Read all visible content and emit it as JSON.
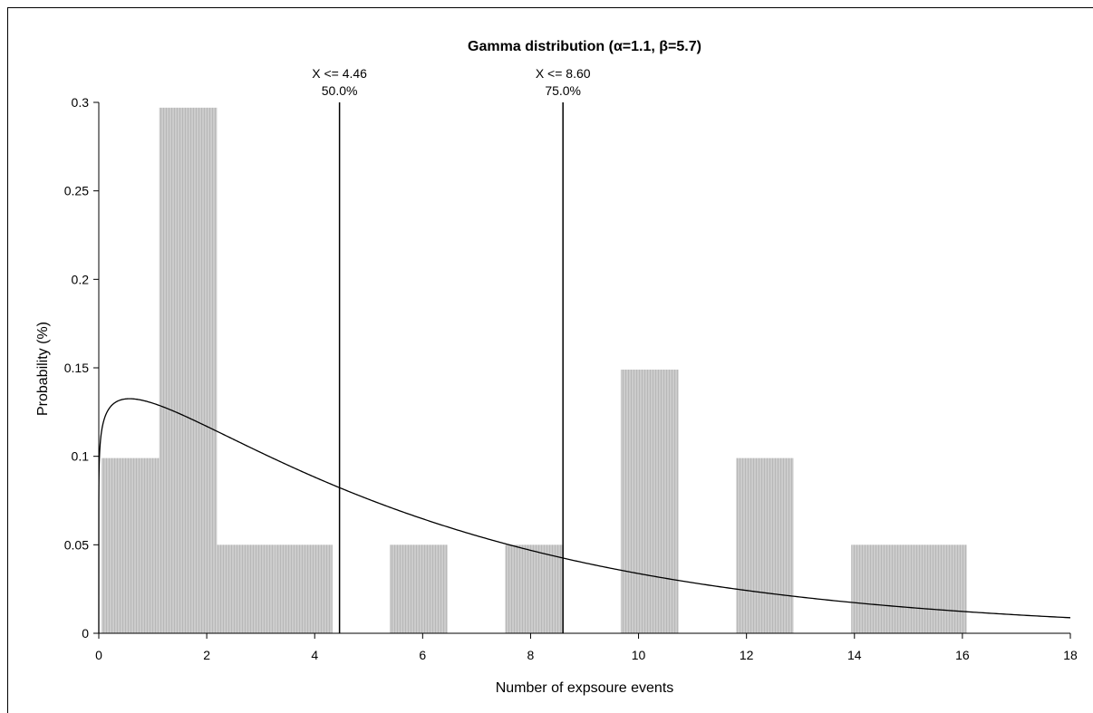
{
  "chart_data": {
    "type": "bar",
    "title": "Gamma distribution (α=1.1, β=5.7)",
    "xlabel": "Number of expsoure events",
    "ylabel": "Probability (%)",
    "xlim": [
      0,
      18
    ],
    "ylim": [
      0,
      0.3
    ],
    "x_ticks": [
      "0",
      "2",
      "4",
      "6",
      "8",
      "10",
      "12",
      "14",
      "16",
      "18"
    ],
    "y_ticks": [
      "0",
      "0.05",
      "0.1",
      "0.15",
      "0.2",
      "0.25",
      "0.3"
    ],
    "bars": [
      {
        "x0": 0.05,
        "x1": 1.12,
        "value": 0.099
      },
      {
        "x0": 1.12,
        "x1": 2.19,
        "value": 0.297
      },
      {
        "x0": 2.19,
        "x1": 3.26,
        "value": 0.05
      },
      {
        "x0": 3.26,
        "x1": 4.33,
        "value": 0.05
      },
      {
        "x0": 4.33,
        "x1": 5.39,
        "value": 0.0
      },
      {
        "x0": 5.39,
        "x1": 6.46,
        "value": 0.05
      },
      {
        "x0": 6.46,
        "x1": 7.53,
        "value": 0.0
      },
      {
        "x0": 7.53,
        "x1": 8.6,
        "value": 0.05
      },
      {
        "x0": 8.6,
        "x1": 9.67,
        "value": 0.0
      },
      {
        "x0": 9.67,
        "x1": 10.74,
        "value": 0.149
      },
      {
        "x0": 10.74,
        "x1": 11.81,
        "value": 0.0
      },
      {
        "x0": 11.81,
        "x1": 12.87,
        "value": 0.099
      },
      {
        "x0": 12.87,
        "x1": 13.94,
        "value": 0.0
      },
      {
        "x0": 13.94,
        "x1": 15.01,
        "value": 0.05
      },
      {
        "x0": 15.01,
        "x1": 16.08,
        "value": 0.05
      }
    ],
    "curve": {
      "alpha": 1.1,
      "beta": 5.7
    },
    "markers": [
      {
        "x": 4.46,
        "label": "X <= 4.46",
        "percent": "50.0%"
      },
      {
        "x": 8.6,
        "label": "X <= 8.60",
        "percent": "75.0%"
      }
    ],
    "colors": {
      "bar": "#c8c8c8",
      "bar_stripe": "#b4b4b4",
      "line": "#000000"
    },
    "grid": false
  }
}
